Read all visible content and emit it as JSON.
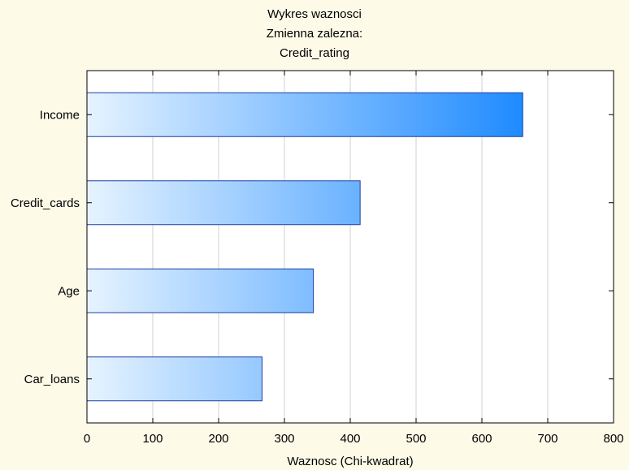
{
  "chart_data": {
    "type": "bar",
    "orientation": "horizontal",
    "title": [
      "Wykres waznosci",
      "Zmienna zalezna:",
      "Credit_rating"
    ],
    "xlabel": "Waznosc (Chi-kwadrat)",
    "ylabel": "",
    "categories": [
      "Income",
      "Credit_cards",
      "Age",
      "Car_loans"
    ],
    "values": [
      662,
      415,
      344,
      266
    ],
    "xlim": [
      0,
      800
    ],
    "xticks": [
      0,
      100,
      200,
      300,
      400,
      500,
      600,
      700,
      800
    ],
    "grid": "vertical",
    "colors": {
      "background": "#fdfae8",
      "plot_background": "#ffffff",
      "bar_gradient_start": "#e6f3ff",
      "bar_gradient_end": "#1f8bff",
      "bar_border": "#1e3fa0",
      "grid": "#d0d0d0",
      "frame": "#000000"
    }
  }
}
